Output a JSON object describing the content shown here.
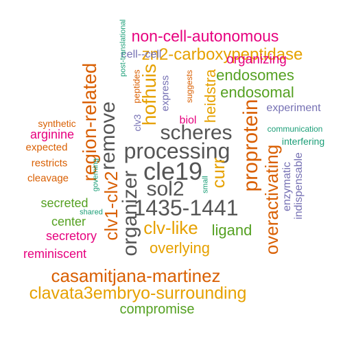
{
  "colors": {
    "dark": "#555555",
    "orange": "#d95f02",
    "gold": "#e6a100",
    "green": "#55a122",
    "magenta": "#e6007e",
    "purple": "#7570b3",
    "teal": "#1b9e77"
  },
  "words": [
    {
      "text": "non-cell-autonomous",
      "color": "magenta"
    },
    {
      "text": "zn2-carboxypeptidase",
      "color": "gold"
    },
    {
      "text": "cell--cell",
      "color": "purple"
    },
    {
      "text": "organizing",
      "color": "magenta"
    },
    {
      "text": "endosomes",
      "color": "green"
    },
    {
      "text": "endosomal",
      "color": "green"
    },
    {
      "text": "experiment",
      "color": "purple"
    },
    {
      "text": "biol",
      "color": "magenta"
    },
    {
      "text": "scheres",
      "color": "dark"
    },
    {
      "text": "processing",
      "color": "dark"
    },
    {
      "text": "communication",
      "color": "teal"
    },
    {
      "text": "synthetic",
      "color": "orange"
    },
    {
      "text": "interfering",
      "color": "teal"
    },
    {
      "text": "arginine",
      "color": "magenta"
    },
    {
      "text": "expected",
      "color": "orange"
    },
    {
      "text": "restricts",
      "color": "orange"
    },
    {
      "text": "cle19",
      "color": "dark"
    },
    {
      "text": "cleavage",
      "color": "orange"
    },
    {
      "text": "sol2",
      "color": "dark"
    },
    {
      "text": "secreted",
      "color": "green"
    },
    {
      "text": "shared",
      "color": "teal"
    },
    {
      "text": "1435-1441",
      "color": "dark"
    },
    {
      "text": "center",
      "color": "green"
    },
    {
      "text": "clv-like",
      "color": "gold"
    },
    {
      "text": "ligand",
      "color": "green"
    },
    {
      "text": "secretory",
      "color": "magenta"
    },
    {
      "text": "overlying",
      "color": "gold"
    },
    {
      "text": "reminiscent",
      "color": "magenta"
    },
    {
      "text": "casamitjana-martinez",
      "color": "orange"
    },
    {
      "text": "clavata3embryo-surrounding",
      "color": "gold"
    },
    {
      "text": "compromise",
      "color": "green"
    },
    {
      "text": "post-translational",
      "color": "teal"
    },
    {
      "text": "peptides",
      "color": "orange"
    },
    {
      "text": "express",
      "color": "purple"
    },
    {
      "text": "suggests",
      "color": "orange"
    },
    {
      "text": "hofhuis",
      "color": "gold"
    },
    {
      "text": "heidstra",
      "color": "gold"
    },
    {
      "text": "clv3",
      "color": "purple"
    },
    {
      "text": "region-related",
      "color": "orange"
    },
    {
      "text": "remove",
      "color": "dark"
    },
    {
      "text": "proprotein",
      "color": "orange"
    },
    {
      "text": "curr",
      "color": "gold"
    },
    {
      "text": "overactivating",
      "color": "orange"
    },
    {
      "text": "enzymatic",
      "color": "purple"
    },
    {
      "text": "indispensable",
      "color": "purple"
    },
    {
      "text": "governing",
      "color": "teal"
    },
    {
      "text": "small",
      "color": "teal"
    },
    {
      "text": "clv1-clv2",
      "color": "orange"
    },
    {
      "text": "organizer",
      "color": "dark"
    }
  ]
}
